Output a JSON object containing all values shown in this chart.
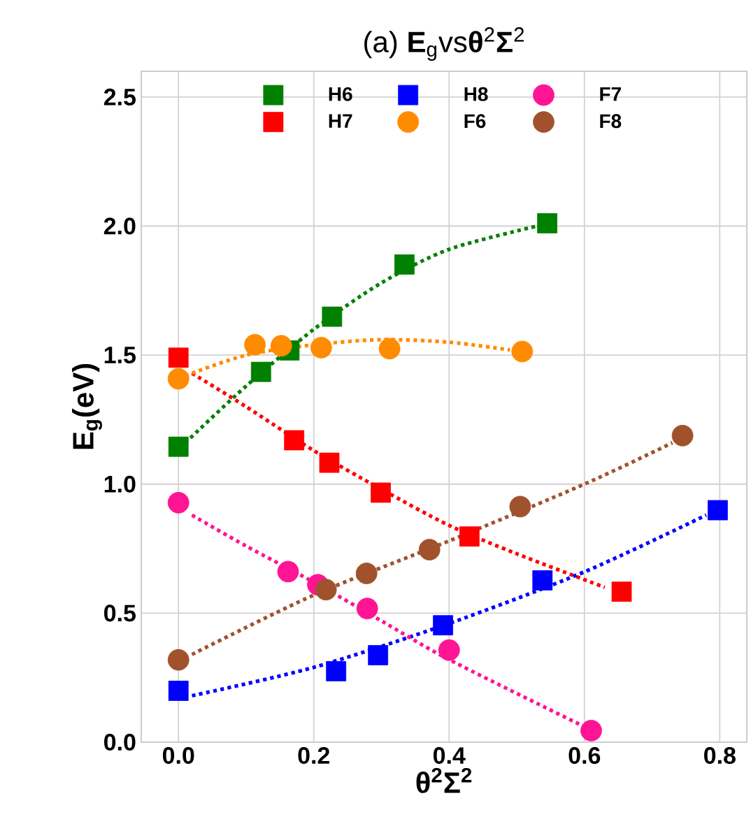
{
  "chart_data": {
    "type": "scatter",
    "title": "(a) **E**$_{g}$vs**θ**$^{2}$**Σ**$^{2}$",
    "xlabel": "θ$^{2}$Σ$^{2}$",
    "ylabel": "**E**$_{g}$(eV)",
    "xlim": [
      -0.055,
      0.84
    ],
    "ylim": [
      0,
      2.6
    ],
    "xticks": [
      {
        "value": 0,
        "label": "0.0"
      },
      {
        "value": 0.2,
        "label": "0.2"
      },
      {
        "value": 0.4,
        "label": "0.4"
      },
      {
        "value": 0.6,
        "label": "0.6"
      },
      {
        "value": 0.8,
        "label": "0.8"
      }
    ],
    "yticks": [
      {
        "value": 0,
        "label": "0.0"
      },
      {
        "value": 0.5,
        "label": "0.5"
      },
      {
        "value": 1,
        "label": "1.0"
      },
      {
        "value": 1.5,
        "label": "1.5"
      },
      {
        "value": 2,
        "label": "2.0"
      },
      {
        "value": 2.5,
        "label": "2.5"
      }
    ],
    "grid": true,
    "legend": "top",
    "series": [
      {
        "name": "H6",
        "marker": "square",
        "color": "#008000",
        "x": [
          0,
          0.122,
          0.164,
          0.227,
          0.334,
          0.545
        ],
        "values": [
          1.145,
          1.435,
          1.518,
          1.649,
          1.851,
          2.011
        ]
      },
      {
        "name": "H7",
        "marker": "square",
        "color": "#ff0000",
        "x": [
          0,
          0.171,
          0.223,
          0.299,
          0.43,
          0.655
        ],
        "values": [
          1.49,
          1.17,
          1.083,
          0.967,
          0.797,
          0.583
        ]
      },
      {
        "name": "H8",
        "marker": "square",
        "color": "#0000ff",
        "x": [
          0,
          0.233,
          0.295,
          0.391,
          0.538,
          0.797
        ],
        "values": [
          0.199,
          0.275,
          0.337,
          0.453,
          0.627,
          0.899
        ]
      },
      {
        "name": "F6",
        "marker": "circle",
        "color": "#ff8c00",
        "x": [
          0,
          0.113,
          0.152,
          0.211,
          0.312,
          0.508
        ],
        "values": [
          1.408,
          1.54,
          1.536,
          1.529,
          1.525,
          1.514
        ]
      },
      {
        "name": "F7",
        "marker": "circle",
        "color": "#ff1493",
        "x": [
          0,
          0.162,
          0.206,
          0.279,
          0.4,
          0.61
        ],
        "values": [
          0.928,
          0.661,
          0.61,
          0.518,
          0.357,
          0.045
        ]
      },
      {
        "name": "F8",
        "marker": "circle",
        "color": "#a0522d",
        "x": [
          0,
          0.218,
          0.278,
          0.371,
          0.505,
          0.745
        ],
        "values": [
          0.319,
          0.591,
          0.654,
          0.746,
          0.913,
          1.188
        ]
      },
      {
        "type": "line",
        "line_style": "dotted",
        "marker": "none",
        "color": "#008000",
        "x": [
          0.01,
          0.1,
          0.2,
          0.3,
          0.4,
          0.53
        ],
        "values": [
          1.16,
          1.38,
          1.6,
          1.78,
          1.91,
          2.0
        ]
      },
      {
        "type": "line",
        "line_style": "dotted",
        "marker": "none",
        "color": "#ff0000",
        "x": [
          0.02,
          0.1,
          0.2,
          0.3,
          0.4,
          0.5,
          0.63
        ],
        "values": [
          1.43,
          1.3,
          1.13,
          0.98,
          0.84,
          0.73,
          0.6
        ]
      },
      {
        "type": "line",
        "line_style": "dotted",
        "marker": "none",
        "color": "#0000ff",
        "x": [
          0.02,
          0.2,
          0.4,
          0.6,
          0.78
        ],
        "values": [
          0.18,
          0.29,
          0.46,
          0.66,
          0.88
        ]
      },
      {
        "type": "line",
        "line_style": "dotted",
        "marker": "none",
        "color": "#ff8c00",
        "x": [
          0.01,
          0.1,
          0.2,
          0.3,
          0.4,
          0.49
        ],
        "values": [
          1.42,
          1.5,
          1.54,
          1.56,
          1.55,
          1.52
        ]
      },
      {
        "type": "line",
        "line_style": "dotted",
        "marker": "none",
        "color": "#ff1493",
        "x": [
          0.02,
          0.1,
          0.2,
          0.3,
          0.4,
          0.6
        ],
        "values": [
          0.88,
          0.76,
          0.62,
          0.47,
          0.32,
          0.06
        ]
      },
      {
        "type": "line",
        "line_style": "dotted",
        "marker": "none",
        "color": "#a0522d",
        "x": [
          0.02,
          0.2,
          0.4,
          0.6,
          0.73
        ],
        "values": [
          0.34,
          0.57,
          0.78,
          1.0,
          1.16
        ]
      }
    ]
  }
}
